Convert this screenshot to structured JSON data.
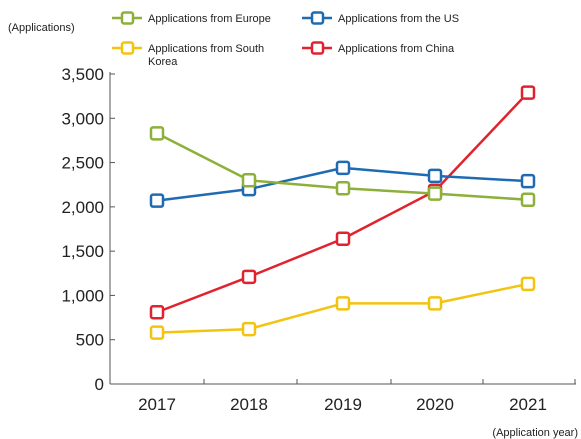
{
  "chart_data": {
    "type": "line",
    "title": "",
    "ylabel": "(Applications)",
    "xlabel": "(Application year)",
    "x": [
      "2017",
      "2018",
      "2019",
      "2020",
      "2021"
    ],
    "ylim": [
      0,
      3500
    ],
    "yticks": [
      0,
      500,
      1000,
      1500,
      2000,
      2500,
      3000,
      3500
    ],
    "ytick_labels": [
      "0",
      "500",
      "1,000",
      "1,500",
      "2,000",
      "2,500",
      "3,000",
      "3,500"
    ],
    "grid": false,
    "legend_position": "top",
    "series": [
      {
        "name": "Applications from Europe",
        "color": "#8DB03A",
        "values": [
          2830,
          2300,
          2210,
          2150,
          2080
        ]
      },
      {
        "name": "Applications from the US",
        "color": "#1F6BB2",
        "values": [
          2070,
          2200,
          2440,
          2350,
          2290
        ]
      },
      {
        "name": "Applications from South Korea",
        "color": "#F2C40F",
        "values": [
          580,
          620,
          910,
          910,
          1130
        ]
      },
      {
        "name": "Applications from China",
        "color": "#E0232E",
        "values": [
          810,
          1210,
          1640,
          2180,
          3290
        ]
      }
    ]
  }
}
